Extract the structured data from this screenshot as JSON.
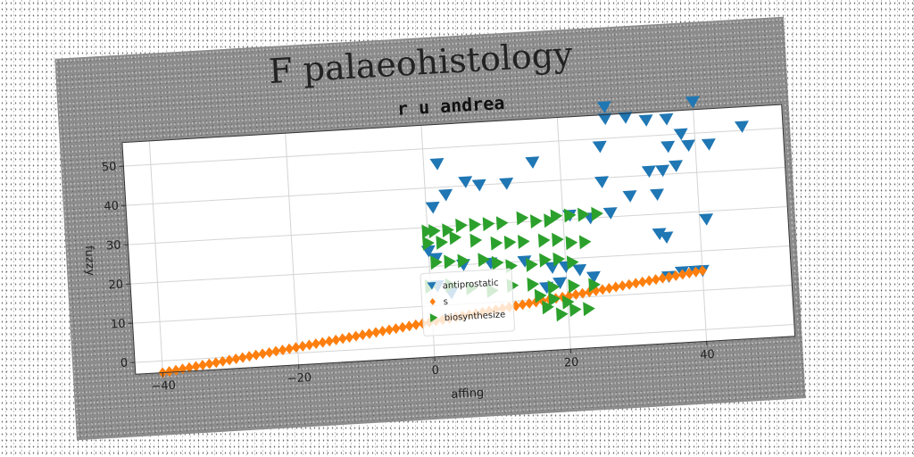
{
  "figure": {
    "suptitle": "F palaeohistology"
  },
  "chart_data": {
    "type": "scatter",
    "title": "r u andrea",
    "xlabel": "affing",
    "ylabel": "fuzzy",
    "xlim": [
      -44,
      53
    ],
    "ylim": [
      -3,
      56
    ],
    "xticks": [
      -40,
      -20,
      0,
      20,
      40
    ],
    "yticks": [
      0,
      10,
      20,
      30,
      40,
      50
    ],
    "grid": true,
    "legend_position": "lower center",
    "colors": {
      "antiprostatic": "#1f77b4",
      "s": "#ff7f0e",
      "biosynthesize": "#2ca02c"
    },
    "series": [
      {
        "name": "antiprostatic",
        "marker": "triangle-down",
        "points": [
          [
            2,
            46
          ],
          [
            3,
            38
          ],
          [
            1,
            35
          ],
          [
            6,
            41
          ],
          [
            8,
            40
          ],
          [
            12,
            40
          ],
          [
            16,
            45
          ],
          [
            27,
            58
          ],
          [
            27,
            55
          ],
          [
            30,
            55
          ],
          [
            26,
            48
          ],
          [
            33,
            54
          ],
          [
            36,
            54
          ],
          [
            40,
            58
          ],
          [
            42,
            47
          ],
          [
            47,
            51
          ],
          [
            38,
            50
          ],
          [
            39,
            47
          ],
          [
            36,
            47
          ],
          [
            37,
            42
          ],
          [
            35,
            41
          ],
          [
            33,
            41
          ],
          [
            34,
            35
          ],
          [
            30,
            35
          ],
          [
            26,
            39
          ],
          [
            21,
            31
          ],
          [
            24,
            30
          ],
          [
            27,
            31
          ],
          [
            41,
            28
          ],
          [
            35,
            24
          ],
          [
            34,
            25
          ],
          [
            37,
            15
          ],
          [
            35,
            14
          ],
          [
            39,
            15
          ],
          [
            40,
            15
          ],
          [
            0,
            24
          ],
          [
            1,
            22
          ],
          [
            5,
            20
          ],
          [
            9,
            20
          ],
          [
            14,
            20
          ],
          [
            18,
            18
          ],
          [
            20,
            18
          ],
          [
            22,
            17
          ],
          [
            24,
            15
          ],
          [
            19,
            14
          ],
          [
            17,
            13
          ],
          [
            1,
            15
          ],
          [
            3,
            13
          ]
        ]
      },
      {
        "name": "s",
        "marker": "diamond",
        "line_points": [
          [
            -40,
            -3
          ],
          [
            40,
            15
          ]
        ],
        "n": 82
      },
      {
        "name": "biosynthesize",
        "marker": "triangle-right",
        "points": [
          [
            0,
            29
          ],
          [
            1,
            29
          ],
          [
            3,
            29
          ],
          [
            5,
            30
          ],
          [
            7,
            30
          ],
          [
            9,
            30
          ],
          [
            11,
            30
          ],
          [
            14,
            31
          ],
          [
            16,
            30
          ],
          [
            18,
            30
          ],
          [
            19,
            31
          ],
          [
            21,
            31
          ],
          [
            23,
            31
          ],
          [
            25,
            31
          ],
          [
            0,
            26
          ],
          [
            2,
            26
          ],
          [
            4,
            27
          ],
          [
            7,
            26
          ],
          [
            10,
            25
          ],
          [
            12,
            25
          ],
          [
            14,
            25
          ],
          [
            17,
            25
          ],
          [
            19,
            25
          ],
          [
            21,
            24
          ],
          [
            23,
            24
          ],
          [
            1,
            21
          ],
          [
            3,
            21
          ],
          [
            5,
            21
          ],
          [
            8,
            21
          ],
          [
            10,
            20
          ],
          [
            12,
            19
          ],
          [
            15,
            19
          ],
          [
            17,
            20
          ],
          [
            19,
            20
          ],
          [
            21,
            19
          ],
          [
            0,
            15
          ],
          [
            3,
            15
          ],
          [
            6,
            14
          ],
          [
            9,
            13
          ],
          [
            12,
            14
          ],
          [
            15,
            14
          ],
          [
            18,
            13
          ],
          [
            21,
            13
          ],
          [
            24,
            13
          ],
          [
            16,
            11
          ],
          [
            18,
            10
          ],
          [
            20,
            9
          ],
          [
            17,
            8
          ],
          [
            19,
            6
          ],
          [
            21,
            7
          ],
          [
            23,
            7
          ]
        ]
      }
    ]
  }
}
